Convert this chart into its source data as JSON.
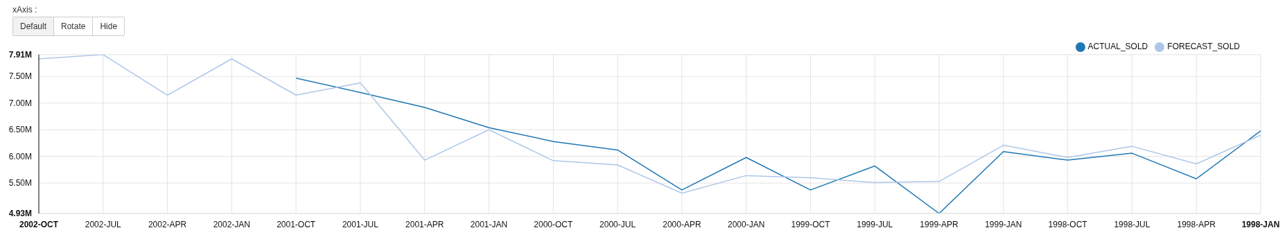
{
  "chart_data": {
    "type": "line",
    "annotations": [
      "xAxis :",
      "Default",
      "Rotate",
      "Hide"
    ],
    "categories": [
      "2002-OCT",
      "2002-JUL",
      "2002-APR",
      "2002-JAN",
      "2001-OCT",
      "2001-JUL",
      "2001-APR",
      "2001-JAN",
      "2000-OCT",
      "2000-JUL",
      "2000-APR",
      "2000-JAN",
      "1999-OCT",
      "1999-JUL",
      "1999-APR",
      "1999-JAN",
      "1998-OCT",
      "1998-JUL",
      "1998-APR",
      "1998-JAN"
    ],
    "series": [
      {
        "name": "ACTUAL_SOLD",
        "color": "#1f77b4",
        "values": [
          null,
          null,
          null,
          null,
          7.47,
          7.2,
          6.92,
          6.54,
          6.28,
          6.12,
          5.37,
          5.98,
          5.37,
          5.82,
          4.93,
          6.09,
          5.93,
          6.06,
          5.58,
          6.48
        ]
      },
      {
        "name": "FORECAST_SOLD",
        "color": "#aec7e8",
        "values": [
          7.83,
          7.91,
          7.15,
          7.83,
          7.15,
          7.38,
          5.93,
          6.5,
          5.92,
          5.84,
          5.31,
          5.64,
          5.6,
          5.51,
          5.53,
          6.21,
          5.98,
          6.19,
          5.86,
          6.4
        ]
      }
    ],
    "ylim": [
      4.93,
      7.91
    ],
    "yticks": [
      {
        "value": 4.93,
        "label": "4.93M"
      },
      {
        "value": 5.5,
        "label": "5.50M"
      },
      {
        "value": 6,
        "label": "6.00M"
      },
      {
        "value": 6.5,
        "label": "6.50M"
      },
      {
        "value": 7,
        "label": "7.00M"
      },
      {
        "value": 7.5,
        "label": "7.50M"
      },
      {
        "value": 7.91,
        "label": "7.91M"
      }
    ],
    "grid": true,
    "legend": "top right",
    "marker": "none",
    "line_style": "solid"
  }
}
